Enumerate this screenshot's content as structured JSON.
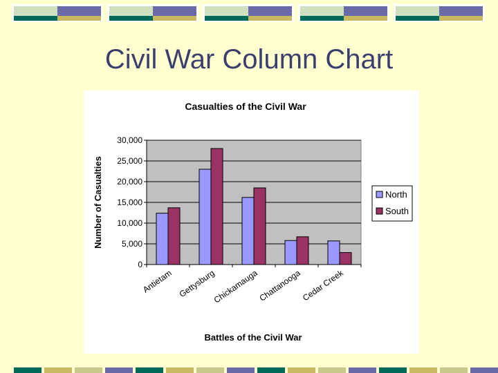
{
  "slide": {
    "title": "Civil War Column Chart"
  },
  "theme": {
    "background": "#ffffd0",
    "title_color": "#3a3f70",
    "deco_colors": [
      "#006a5a",
      "#6a6aa8",
      "#c8c88c",
      "#cfe0c0",
      "#c8b860"
    ]
  },
  "chart_data": {
    "type": "bar",
    "title": "Casualties of the Civil War",
    "xlabel": "Battles of the Civil War",
    "ylabel": "Number of Casualties",
    "categories": [
      "Antietam",
      "Gettysburg",
      "Chickamauga",
      "Chattanooga",
      "Cedar Creek"
    ],
    "series": [
      {
        "name": "North",
        "color": "#9999ff",
        "values": [
          12400,
          23000,
          16200,
          5800,
          5700
        ]
      },
      {
        "name": "South",
        "color": "#993366",
        "values": [
          13700,
          28000,
          18500,
          6700,
          2900
        ]
      }
    ],
    "ylim": [
      0,
      30000
    ],
    "yticks": [
      0,
      5000,
      10000,
      15000,
      20000,
      25000,
      30000
    ],
    "ytick_labels": [
      "0",
      "5,000",
      "10,000",
      "15,000",
      "20,000",
      "25,000",
      "30,000"
    ],
    "plot_background": "#c0c0c0",
    "grid": true,
    "legend_position": "right"
  }
}
